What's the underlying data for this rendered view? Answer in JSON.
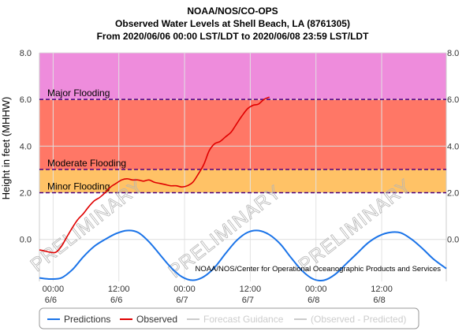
{
  "chart_data": {
    "type": "line",
    "title": "NOAA/NOS/CO-OPS",
    "subtitle": "Observed Water Levels at Shell Beach, LA (8761305)",
    "range_text": "From 2020/06/06 00:00 LST/LDT to 2020/06/08 23:59 LST/LDT",
    "ylabel": "Height in feet (MHHW)",
    "ylim": [
      -1.8,
      8.0
    ],
    "xlim_hours": [
      -2.5,
      71.8
    ],
    "y_ticks": [
      {
        "value": 8,
        "label": "8.0"
      },
      {
        "value": 6,
        "label": "6.0"
      },
      {
        "value": 4,
        "label": "4.0"
      },
      {
        "value": 2,
        "label": "2.0"
      },
      {
        "value": 0,
        "label": "0.0"
      }
    ],
    "x_ticks": [
      {
        "hour": 0,
        "time": "00:00",
        "date": "6/6"
      },
      {
        "hour": 12,
        "time": "12:00",
        "date": "6/6"
      },
      {
        "hour": 24,
        "time": "00:00",
        "date": "6/7"
      },
      {
        "hour": 36,
        "time": "12:00",
        "date": "6/7"
      },
      {
        "hour": 48,
        "time": "00:00",
        "date": "6/8"
      },
      {
        "hour": 60,
        "time": "12:00",
        "date": "6/8"
      }
    ],
    "bands": [
      {
        "name": "Major Flooding",
        "from": 6.0,
        "to": 8.0,
        "color": "#ee8cdc"
      },
      {
        "name": "Moderate Flooding",
        "from": 3.0,
        "to": 6.0,
        "color": "#ff7766"
      },
      {
        "name": "Minor Flooding",
        "from": 2.0,
        "to": 3.0,
        "color": "#ffc266"
      }
    ],
    "series": [
      {
        "name": "Predictions",
        "color": "#1a73e8",
        "x": [
          -2.5,
          -0.5,
          1.5,
          3.5,
          5.5,
          7.5,
          9.5,
          11.5,
          13.5,
          15.5,
          17.5,
          19.5,
          21.5,
          23.5,
          25.5,
          27.5,
          29.5,
          31.5,
          33.5,
          35.5,
          37.5,
          39.5,
          41.5,
          43.5,
          45.5,
          47.5,
          49.5,
          51.5,
          53.5,
          55.5,
          57.5,
          59.5,
          61.5,
          63.5,
          65.5,
          67.5,
          69.5,
          71.8
        ],
        "values": [
          -1.65,
          -1.7,
          -1.65,
          -1.3,
          -0.75,
          -0.3,
          0.0,
          0.25,
          0.38,
          0.3,
          -0.1,
          -0.65,
          -1.2,
          -1.6,
          -1.75,
          -1.6,
          -1.2,
          -0.6,
          -0.05,
          0.3,
          0.38,
          0.2,
          -0.2,
          -0.8,
          -1.35,
          -1.7,
          -1.75,
          -1.5,
          -1.05,
          -0.6,
          -0.15,
          0.15,
          0.3,
          0.28,
          0.0,
          -0.4,
          -0.85,
          -1.25
        ]
      },
      {
        "name": "Observed",
        "color": "#e00000",
        "x": [
          -2.5,
          -1.5,
          -0.5,
          0.5,
          1.5,
          2.5,
          3.5,
          4.5,
          5.5,
          6.5,
          7.5,
          8.5,
          9.5,
          10.5,
          11.5,
          12.5,
          13.5,
          14.5,
          15.5,
          16.5,
          17.5,
          18.5,
          19.5,
          20.5,
          21.5,
          22.5,
          23.5,
          24.5,
          25.5,
          26.5,
          27.5,
          28.5,
          29.5,
          30.5,
          31.5,
          32.5,
          33.5,
          34.5,
          35.5,
          36.5,
          37.5,
          38.5,
          39.5
        ],
        "values": [
          -0.45,
          -0.5,
          -0.55,
          -0.55,
          -0.3,
          0.1,
          0.5,
          0.85,
          1.1,
          1.4,
          1.65,
          1.8,
          2.0,
          2.25,
          2.4,
          2.55,
          2.6,
          2.55,
          2.55,
          2.5,
          2.55,
          2.45,
          2.4,
          2.35,
          2.3,
          2.3,
          2.25,
          2.3,
          2.45,
          2.8,
          3.2,
          3.8,
          4.1,
          4.2,
          4.4,
          4.6,
          4.95,
          5.3,
          5.6,
          5.75,
          5.8,
          6.0,
          6.1
        ]
      }
    ],
    "watermark": "PRELIMINARY",
    "credit": "NOAA/NOS/Center for Operational Oceanographic Products and Services",
    "legend": [
      {
        "label": "Predictions",
        "color": "#1a73e8",
        "active": true
      },
      {
        "label": "Observed",
        "color": "#e00000",
        "active": true
      },
      {
        "label": "Forecast Guidance",
        "color": "#cccccc",
        "active": false
      },
      {
        "label": "(Observed - Predicted)",
        "color": "#cccccc",
        "active": false
      }
    ],
    "legend_position": "bottom",
    "grid": true
  }
}
